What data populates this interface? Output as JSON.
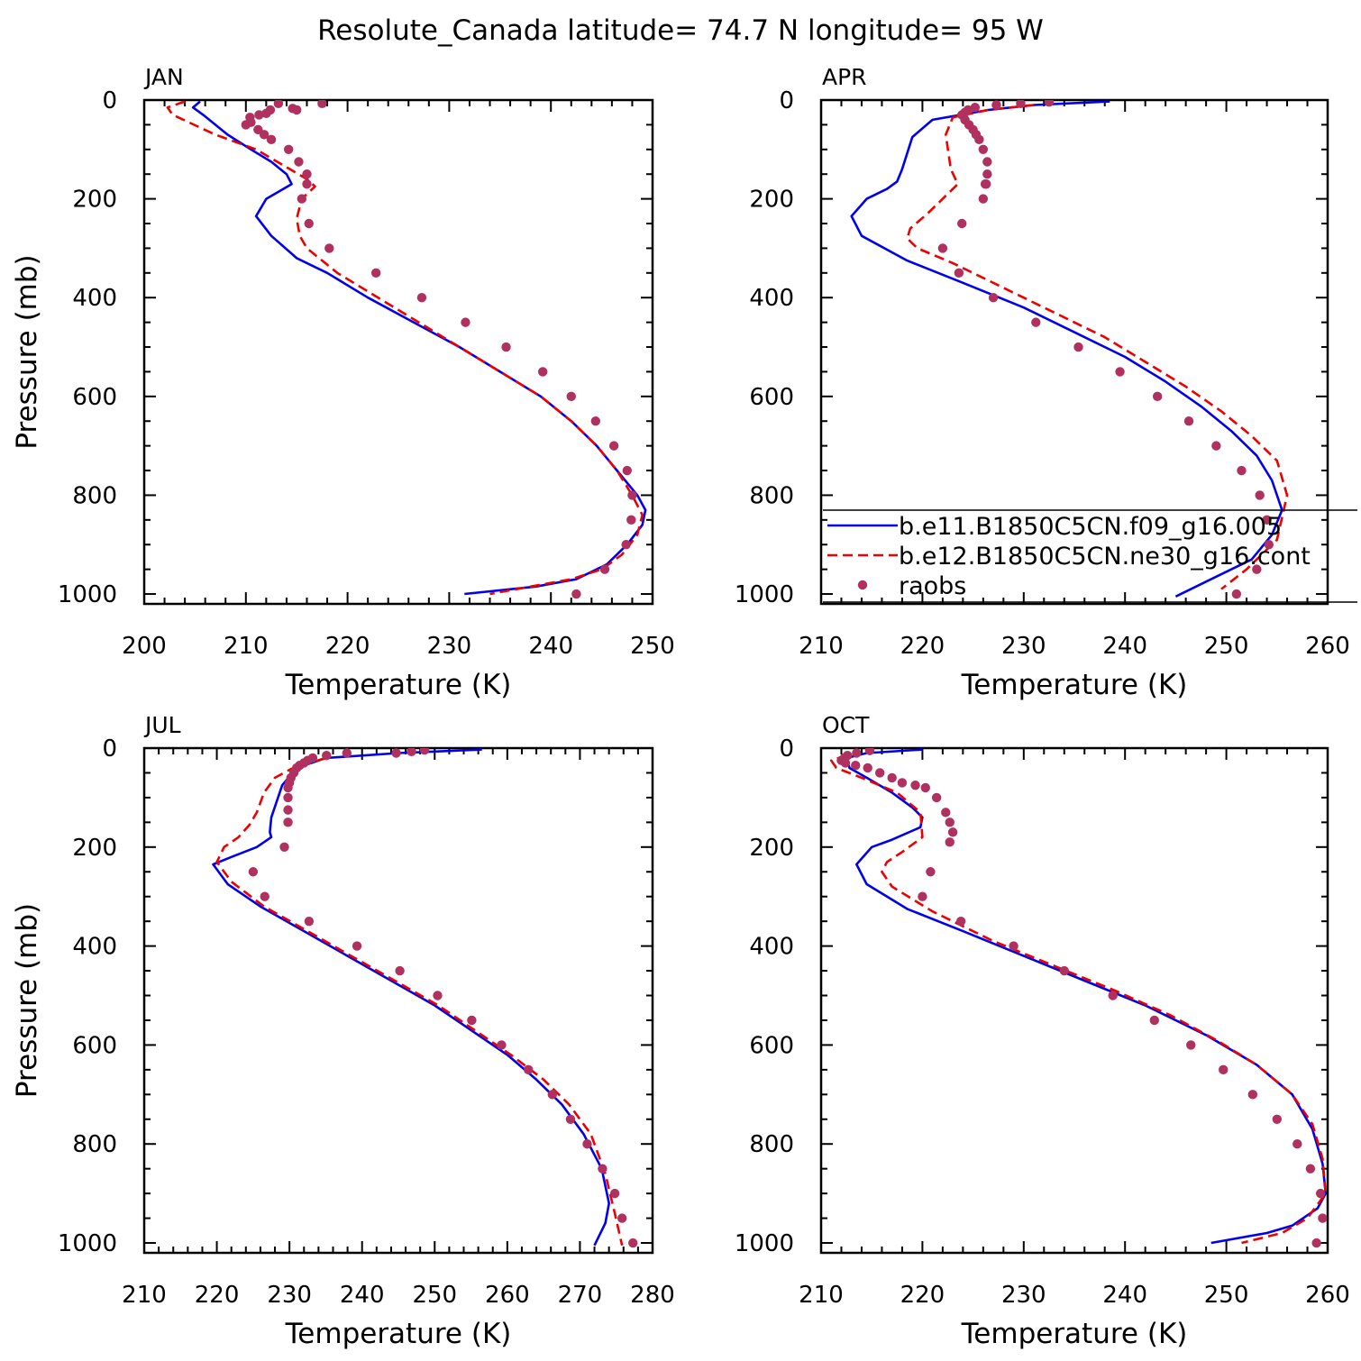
{
  "title": "Resolute_Canada  latitude= 74.7 N longitude= 95 W",
  "colors": {
    "model1": "#0000ee",
    "model2": "#ee0000",
    "obs": "#b03060",
    "axis": "#000000"
  },
  "legend": {
    "placement": "APR panel, lower portion",
    "entries": [
      {
        "label": "b.e11.B1850C5CN.f09_g16.005",
        "style": "solid-blue-line"
      },
      {
        "label": "b.e12.B1850C5CN.ne30_g16.cont",
        "style": "dashed-red-line"
      },
      {
        "label": "raobs",
        "style": "purple-dots"
      }
    ]
  },
  "chart_data": [
    {
      "type": "line",
      "panel": "JAN",
      "xlabel": "Temperature (K)",
      "ylabel": "Pressure (mb)",
      "xlim": [
        200,
        250
      ],
      "ylim": [
        1020,
        0
      ],
      "xticks": [
        200,
        210,
        220,
        230,
        240,
        250
      ],
      "yticks": [
        0,
        200,
        400,
        600,
        800,
        1000
      ],
      "series": [
        {
          "name": "b.e11.B1850C5CN.f09_g16.005",
          "kind": "line",
          "x": [
            205.5,
            204.8,
            205.8,
            208.2,
            210.5,
            212.5,
            214.0,
            214.5,
            212.0,
            211.0,
            212.5,
            215.0,
            218.0,
            222.0,
            226.5,
            231.0,
            235.0,
            239.0,
            242.0,
            244.5,
            246.5,
            248.5,
            249.3,
            249.0,
            247.5,
            245.5,
            242.5,
            238.5,
            231.5
          ],
          "y": [
            3,
            15,
            30,
            70,
            100,
            125,
            150,
            170,
            200,
            235,
            275,
            320,
            350,
            400,
            450,
            500,
            550,
            600,
            650,
            700,
            750,
            800,
            830,
            860,
            900,
            940,
            970,
            985,
            1000
          ]
        },
        {
          "name": "b.e12.B1850C5CN.ne30_g16.cont",
          "kind": "dashed",
          "x": [
            204.0,
            202.3,
            202.8,
            207.0,
            211.0,
            213.5,
            216.0,
            216.8,
            215.5,
            215.0,
            215.3,
            216.0,
            219.0,
            223.0,
            227.0,
            231.0,
            235.0,
            239.0,
            242.0,
            244.5,
            246.5,
            248.0,
            249.0,
            248.5,
            247.0,
            245.0,
            242.0,
            238.0,
            234.0
          ],
          "y": [
            3,
            15,
            30,
            70,
            100,
            130,
            160,
            175,
            200,
            240,
            275,
            300,
            350,
            400,
            450,
            500,
            550,
            600,
            650,
            700,
            750,
            800,
            840,
            880,
            920,
            950,
            970,
            985,
            1000
          ]
        },
        {
          "name": "raobs",
          "kind": "points",
          "x": [
            217.5,
            215.0,
            214.6,
            213.2,
            212.4,
            212.0,
            211.3,
            210.4,
            210.0,
            210.5,
            211.2,
            211.8,
            212.5,
            214.2,
            215.2,
            216.0,
            216.0,
            215.5,
            216.2,
            218.2,
            222.8,
            227.3,
            231.6,
            235.6,
            239.2,
            242.0,
            244.4,
            246.2,
            247.5,
            248.0,
            247.9,
            247.4,
            245.3,
            242.5
          ],
          "y": [
            7,
            20,
            17,
            7,
            20,
            27,
            30,
            35,
            50,
            45,
            60,
            70,
            80,
            100,
            125,
            150,
            170,
            200,
            250,
            300,
            350,
            400,
            450,
            500,
            550,
            600,
            650,
            700,
            750,
            800,
            850,
            900,
            950,
            1000
          ]
        }
      ]
    },
    {
      "type": "line",
      "panel": "APR",
      "xlabel": "Temperature (K)",
      "ylabel": "",
      "xlim": [
        210,
        260
      ],
      "ylim": [
        1020,
        0
      ],
      "xticks": [
        210,
        220,
        230,
        240,
        250,
        260
      ],
      "yticks": [
        0,
        200,
        400,
        600,
        800,
        1000
      ],
      "series": [
        {
          "name": "b.e11.B1850C5CN.f09_g16.005",
          "kind": "line",
          "x": [
            238.5,
            231.0,
            226.5,
            221.0,
            219.0,
            218.0,
            217.5,
            216.5,
            214.5,
            213.0,
            214.0,
            218.5,
            224.0,
            230.0,
            235.0,
            240.0,
            244.0,
            247.5,
            250.5,
            253.0,
            254.5,
            255.5,
            254.5,
            252.5,
            249.5,
            245.0
          ],
          "y": [
            3,
            10,
            20,
            40,
            75,
            140,
            165,
            180,
            200,
            235,
            275,
            325,
            370,
            420,
            470,
            520,
            570,
            620,
            670,
            720,
            770,
            830,
            880,
            930,
            960,
            1005
          ]
        },
        {
          "name": "b.e12.B1850C5CN.ne30_g16.cont",
          "kind": "dashed",
          "x": [
            231.0,
            226.5,
            223.0,
            222.3,
            222.8,
            223.5,
            222.0,
            220.5,
            218.8,
            218.5,
            219.5,
            223.0,
            228.0,
            233.0,
            238.0,
            242.0,
            246.0,
            249.5,
            252.5,
            255.0,
            256.0,
            255.0,
            252.0,
            249.5
          ],
          "y": [
            10,
            20,
            35,
            70,
            140,
            170,
            200,
            230,
            260,
            280,
            300,
            330,
            380,
            430,
            480,
            530,
            580,
            630,
            680,
            730,
            800,
            890,
            950,
            990
          ]
        },
        {
          "name": "raobs",
          "kind": "points",
          "x": [
            232.5,
            229.7,
            227.3,
            225.2,
            224.5,
            224.2,
            223.9,
            224.2,
            224.6,
            225.0,
            225.3,
            225.6,
            226.0,
            226.4,
            226.4,
            226.3,
            226.2,
            226.0,
            223.9,
            222.0,
            223.6,
            227.0,
            231.2,
            235.4,
            239.5,
            243.2,
            246.3,
            249.0,
            251.5,
            253.3,
            254.0,
            254.2,
            253.0,
            251.0
          ],
          "y": [
            4,
            7,
            10,
            15,
            20,
            25,
            30,
            40,
            50,
            60,
            70,
            80,
            100,
            125,
            150,
            170,
            170,
            200,
            250,
            300,
            350,
            400,
            450,
            500,
            550,
            600,
            650,
            700,
            750,
            800,
            850,
            900,
            950,
            1000
          ]
        }
      ]
    },
    {
      "type": "line",
      "panel": "JUL",
      "xlabel": "Temperature (K)",
      "ylabel": "Pressure (mb)",
      "xlim": [
        210,
        280
      ],
      "ylim": [
        1020,
        0
      ],
      "xticks": [
        210,
        220,
        230,
        240,
        250,
        260,
        270,
        280
      ],
      "yticks": [
        0,
        200,
        400,
        600,
        800,
        1000
      ],
      "series": [
        {
          "name": "b.e11.B1850C5CN.f09_g16.005",
          "kind": "line",
          "x": [
            256.5,
            245.0,
            235.0,
            231.0,
            229.0,
            227.5,
            227.3,
            227.5,
            225.5,
            222.0,
            219.5,
            221.5,
            226.0,
            232.0,
            238.0,
            244.0,
            250.0,
            255.0,
            260.0,
            264.0,
            267.5,
            270.5,
            273.0,
            274.0,
            273.5,
            272.0
          ],
          "y": [
            3,
            10,
            20,
            40,
            75,
            140,
            170,
            180,
            200,
            220,
            235,
            275,
            320,
            370,
            420,
            470,
            520,
            570,
            620,
            670,
            720,
            780,
            850,
            920,
            960,
            1005
          ]
        },
        {
          "name": "b.e12.B1850C5CN.ne30_g16.cont",
          "kind": "dashed",
          "x": [
            235.0,
            230.5,
            228.0,
            226.5,
            225.5,
            224.5,
            223.0,
            221.0,
            220.0,
            222.0,
            226.5,
            232.5,
            238.5,
            244.5,
            250.5,
            255.5,
            260.5,
            265.0,
            268.5,
            271.5,
            273.5,
            274.8,
            275.8
          ],
          "y": [
            20,
            40,
            60,
            90,
            130,
            155,
            180,
            200,
            230,
            270,
            320,
            370,
            420,
            470,
            520,
            570,
            620,
            670,
            720,
            780,
            860,
            940,
            1005
          ]
        },
        {
          "name": "raobs",
          "kind": "points",
          "x": [
            248.6,
            246.8,
            244.7,
            237.9,
            235.1,
            233.2,
            232.5,
            232.0,
            231.4,
            231.0,
            230.6,
            230.2,
            230.0,
            229.8,
            229.8,
            229.8,
            229.8,
            229.3,
            225.0,
            226.6,
            232.7,
            239.3,
            245.2,
            250.4,
            255.1,
            259.2,
            262.9,
            266.2,
            268.7,
            271.0,
            273.1,
            274.8,
            275.8,
            277.3
          ],
          "y": [
            4,
            7,
            10,
            10,
            15,
            20,
            25,
            30,
            35,
            40,
            50,
            60,
            70,
            80,
            100,
            125,
            150,
            200,
            250,
            300,
            350,
            400,
            450,
            500,
            550,
            600,
            650,
            700,
            750,
            800,
            850,
            900,
            950,
            1000
          ]
        }
      ]
    },
    {
      "type": "line",
      "panel": "OCT",
      "xlabel": "Temperature (K)",
      "ylabel": "",
      "xlim": [
        210,
        260
      ],
      "ylim": [
        1020,
        0
      ],
      "xticks": [
        210,
        220,
        230,
        240,
        250,
        260
      ],
      "yticks": [
        0,
        200,
        400,
        600,
        800,
        1000
      ],
      "series": [
        {
          "name": "b.e11.B1850C5CN.f09_g16.005",
          "kind": "line",
          "x": [
            220.0,
            214.5,
            212.5,
            212.8,
            214.5,
            217.0,
            219.0,
            220.0,
            219.8,
            217.0,
            215.0,
            213.5,
            214.5,
            218.5,
            224.0,
            230.0,
            236.0,
            242.0,
            248.0,
            253.0,
            256.5,
            258.5,
            259.5,
            259.8,
            259.0,
            256.5,
            254.0,
            248.5
          ],
          "y": [
            3,
            10,
            20,
            40,
            60,
            90,
            120,
            140,
            160,
            185,
            200,
            235,
            275,
            325,
            370,
            420,
            470,
            520,
            580,
            640,
            700,
            770,
            840,
            900,
            930,
            965,
            980,
            1000
          ]
        },
        {
          "name": "b.e12.B1850C5CN.ne30_g16.cont",
          "kind": "dashed",
          "x": [
            212.5,
            211.0,
            211.5,
            214.0,
            217.5,
            219.8,
            220.0,
            218.0,
            216.5,
            216.0,
            217.0,
            221.0,
            227.0,
            233.0,
            239.0,
            244.5,
            249.0,
            253.0,
            256.5,
            258.5,
            259.5,
            259.8,
            258.0,
            255.5,
            251.5
          ],
          "y": [
            15,
            25,
            40,
            60,
            90,
            130,
            180,
            210,
            230,
            250,
            280,
            330,
            390,
            440,
            490,
            540,
            590,
            640,
            700,
            760,
            830,
            900,
            950,
            980,
            1000
          ]
        },
        {
          "name": "raobs",
          "kind": "points",
          "x": [
            214.8,
            213.5,
            212.6,
            212.3,
            212.0,
            212.4,
            213.4,
            214.6,
            215.8,
            217.0,
            218.0,
            219.3,
            220.3,
            221.4,
            222.3,
            222.7,
            223.0,
            222.7,
            220.8,
            220.0,
            223.8,
            229.0,
            234.0,
            238.8,
            242.9,
            246.5,
            249.7,
            252.6,
            255.0,
            257.0,
            258.3,
            259.3,
            259.5,
            258.9
          ],
          "y": [
            5,
            10,
            15,
            20,
            25,
            30,
            35,
            40,
            50,
            60,
            70,
            75,
            80,
            100,
            130,
            150,
            170,
            190,
            250,
            300,
            350,
            400,
            450,
            500,
            550,
            600,
            650,
            700,
            750,
            800,
            850,
            900,
            950,
            1000
          ]
        }
      ]
    }
  ]
}
